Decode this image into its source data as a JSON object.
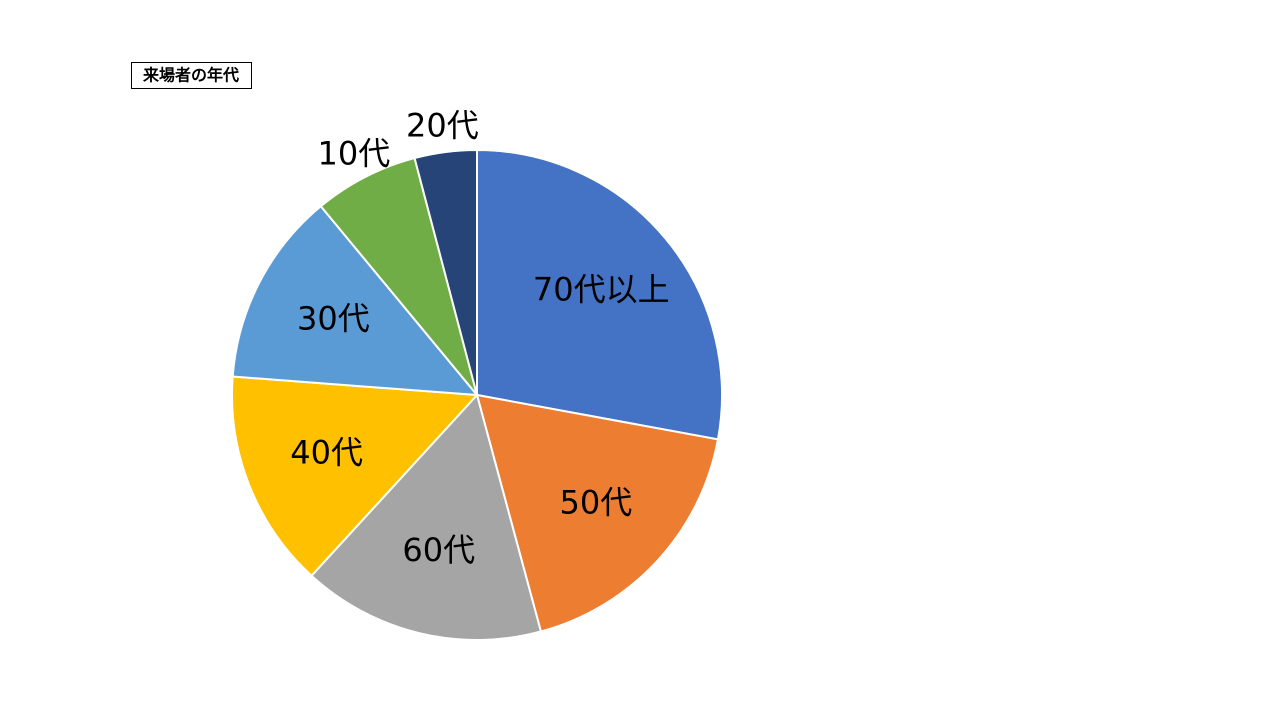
{
  "chart_data": {
    "type": "pie",
    "title": "来場者の年代",
    "categories": [
      "70代以上",
      "50代",
      "60代",
      "40代",
      "30代",
      "10代",
      "20代"
    ],
    "values": [
      27.9,
      17.9,
      16,
      14.4,
      12.8,
      6.9,
      4.1
    ],
    "colors": [
      "#4472c4",
      "#ed7d31",
      "#a5a5a5",
      "#ffc000",
      "#5b9bd5",
      "#70ad47",
      "#264478"
    ]
  }
}
